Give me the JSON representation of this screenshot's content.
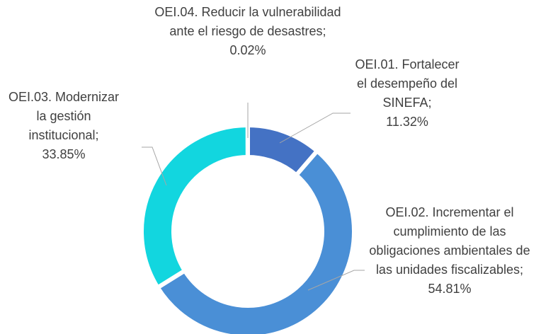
{
  "chart_data": {
    "type": "donut",
    "categories": [
      "OEI.01. Fortalecer el desempeño del SINEFA;",
      "OEI.02. Incrementar el cumplimiento de las obligaciones ambientales de las unidades fiscalizables;",
      "OEI.03. Modernizar la gestión institucional;",
      "OEI.04. Reducir la vulnerabilidad ante el riesgo de desastres;"
    ],
    "values": [
      11.32,
      54.81,
      33.85,
      0.02
    ],
    "value_labels": [
      "11.32%",
      "54.81%",
      "33.85%",
      "0.02%"
    ],
    "colors": [
      "#4472c4",
      "#4a8fd6",
      "#12d6df",
      "#2f5597"
    ]
  }
}
